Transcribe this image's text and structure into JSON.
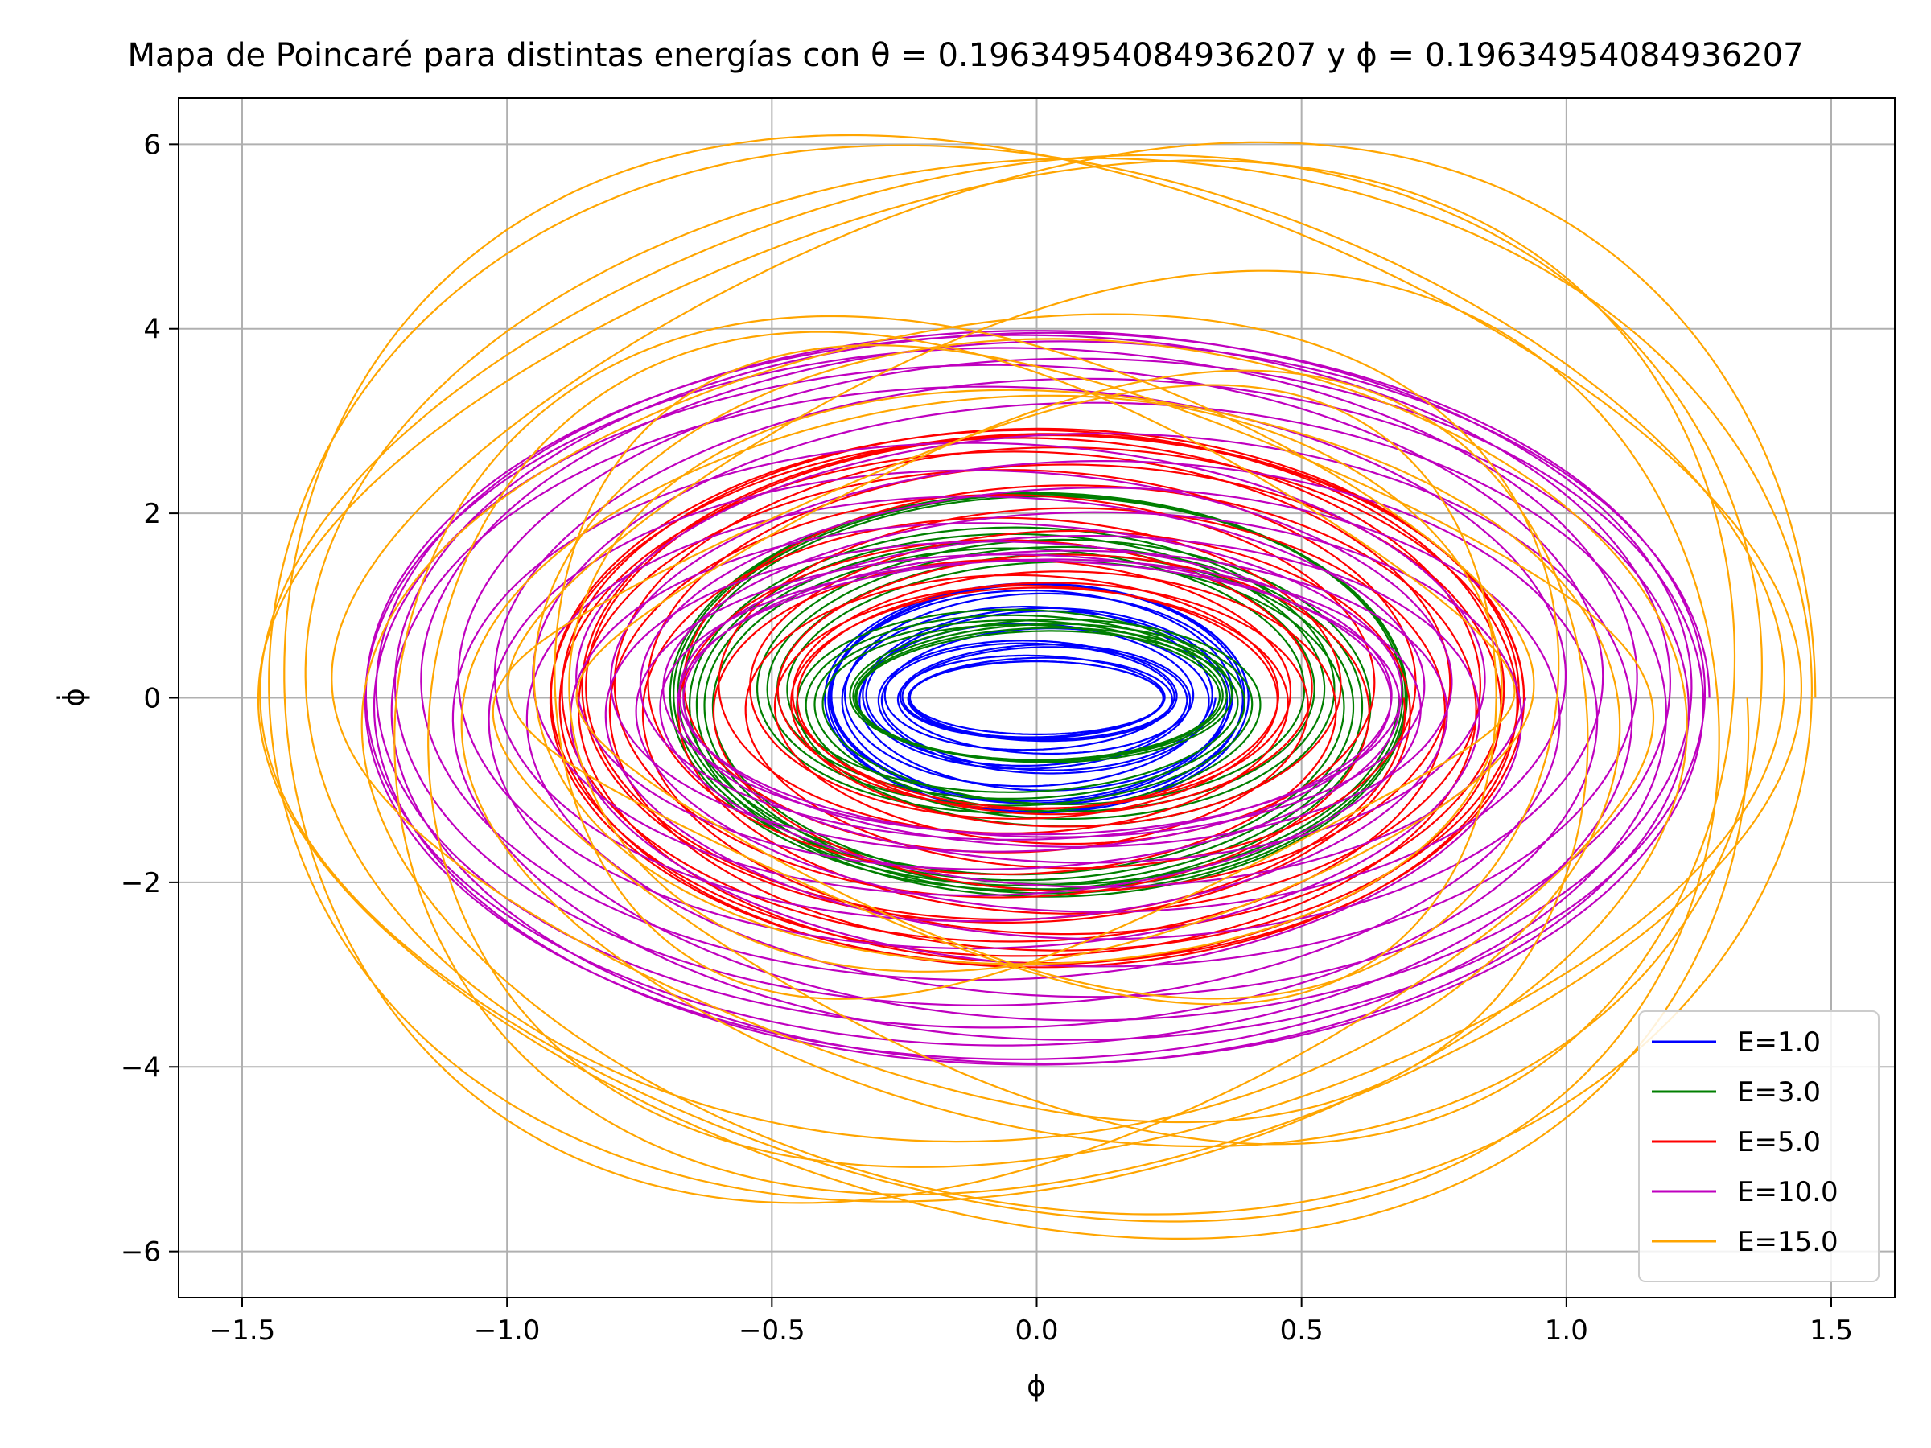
{
  "chart_data": {
    "type": "line",
    "title": "Mapa de Poincaré para distintas energías con θ = 0.19634954084936207 y ϕ = 0.19634954084936207",
    "xlabel": "ϕ",
    "ylabel": "ϕ̇",
    "xlim": [
      -1.62,
      1.62
    ],
    "ylim": [
      -6.5,
      6.5
    ],
    "x_ticks": [
      -1.5,
      -1.0,
      -0.5,
      0.0,
      0.5,
      1.0,
      1.5
    ],
    "x_tick_labels": [
      "−1.5",
      "−1.0",
      "−0.5",
      "0.0",
      "0.5",
      "1.0",
      "1.5"
    ],
    "y_ticks": [
      -6,
      -4,
      -2,
      0,
      2,
      4,
      6
    ],
    "y_tick_labels": [
      "−6",
      "−4",
      "−2",
      "0",
      "2",
      "4",
      "6"
    ],
    "grid": true,
    "legend_position": "lower-right",
    "series": [
      {
        "name": "E=1.0",
        "color": "#0000ff",
        "amplitude_x": 0.4,
        "amplitude_y": 1.25,
        "inner_x": 0.22,
        "inner_y": 0.3,
        "loops": 18
      },
      {
        "name": "E=3.0",
        "color": "#007f00",
        "amplitude_x": 0.7,
        "amplitude_y": 2.22,
        "inner_x": 0.3,
        "inner_y": 0.5,
        "loops": 20
      },
      {
        "name": "E=5.0",
        "color": "#ff0000",
        "amplitude_x": 0.92,
        "amplitude_y": 2.92,
        "inner_x": 0.4,
        "inner_y": 1.0,
        "loops": 22
      },
      {
        "name": "E=10.0",
        "color": "#bf00bf",
        "amplitude_x": 1.27,
        "amplitude_y": 3.98,
        "inner_x": 0.6,
        "inner_y": 1.2,
        "loops": 24
      },
      {
        "name": "E=15.0",
        "color": "#ffa500",
        "amplitude_x": 1.47,
        "amplitude_y": 5.9,
        "inner_x": 0.8,
        "inner_y": 2.5,
        "loops": 16
      }
    ]
  }
}
